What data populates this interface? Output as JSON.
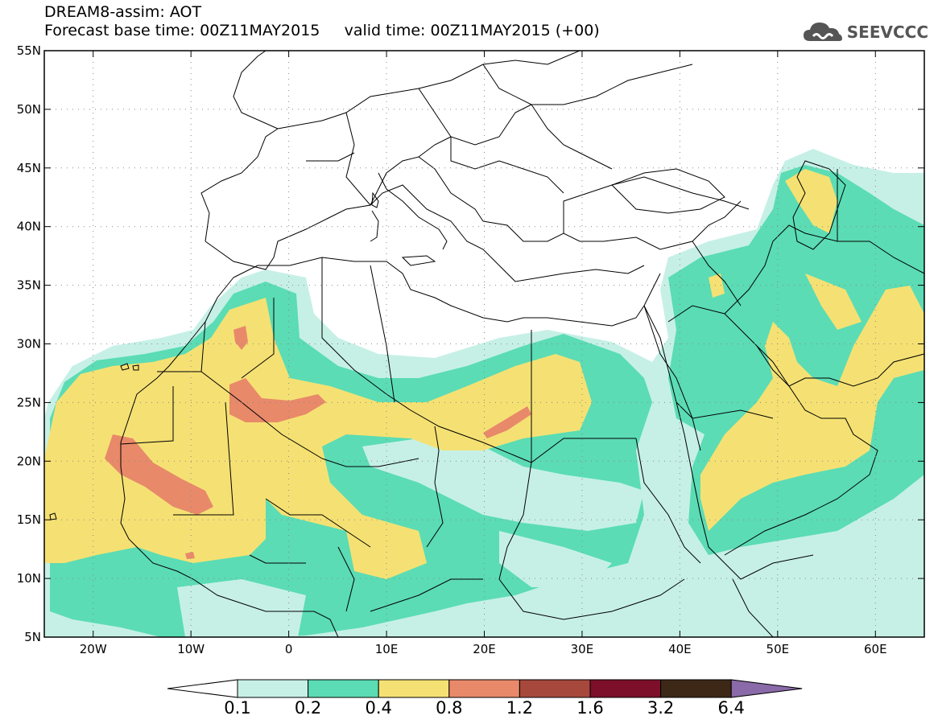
{
  "header": {
    "title_line1": "DREAM8-assim: AOT",
    "title_line2": "Forecast base time: 00Z11MAY2015     valid time: 00Z11MAY2015 (+00)",
    "logo_text": "SEEVCCC"
  },
  "map": {
    "lon_range": [
      -25,
      65
    ],
    "lat_range": [
      5,
      55
    ],
    "lat_ticks": [
      {
        "value": 55,
        "label": "55N"
      },
      {
        "value": 50,
        "label": "50N"
      },
      {
        "value": 45,
        "label": "45N"
      },
      {
        "value": 40,
        "label": "40N"
      },
      {
        "value": 35,
        "label": "35N"
      },
      {
        "value": 30,
        "label": "30N"
      },
      {
        "value": 25,
        "label": "25N"
      },
      {
        "value": 20,
        "label": "20N"
      },
      {
        "value": 15,
        "label": "15N"
      },
      {
        "value": 10,
        "label": "10N"
      },
      {
        "value": 5,
        "label": "5N"
      }
    ],
    "lon_ticks": [
      {
        "value": -20,
        "label": "20W"
      },
      {
        "value": -10,
        "label": "10W"
      },
      {
        "value": 0,
        "label": "0"
      },
      {
        "value": 10,
        "label": "10E"
      },
      {
        "value": 20,
        "label": "20E"
      },
      {
        "value": 30,
        "label": "30E"
      },
      {
        "value": 40,
        "label": "40E"
      },
      {
        "value": 50,
        "label": "50E"
      },
      {
        "value": 60,
        "label": "60E"
      }
    ],
    "grid": "dotted"
  },
  "colorbar": {
    "labels": [
      "0.1",
      "0.2",
      "0.4",
      "0.8",
      "1.2",
      "1.6",
      "3.2",
      "6.4"
    ],
    "colors": [
      "#ffffff",
      "#c6f0e6",
      "#5bdcb4",
      "#f5e173",
      "#e8896a",
      "#a6483c",
      "#7d0f2a",
      "#3d2817",
      "#8a6aa8"
    ]
  },
  "colors": {
    "very_light": "#c6f0e6",
    "teal": "#5bdcb4",
    "yellow": "#f5e173",
    "salmon": "#e8896a",
    "border": "#000000"
  }
}
